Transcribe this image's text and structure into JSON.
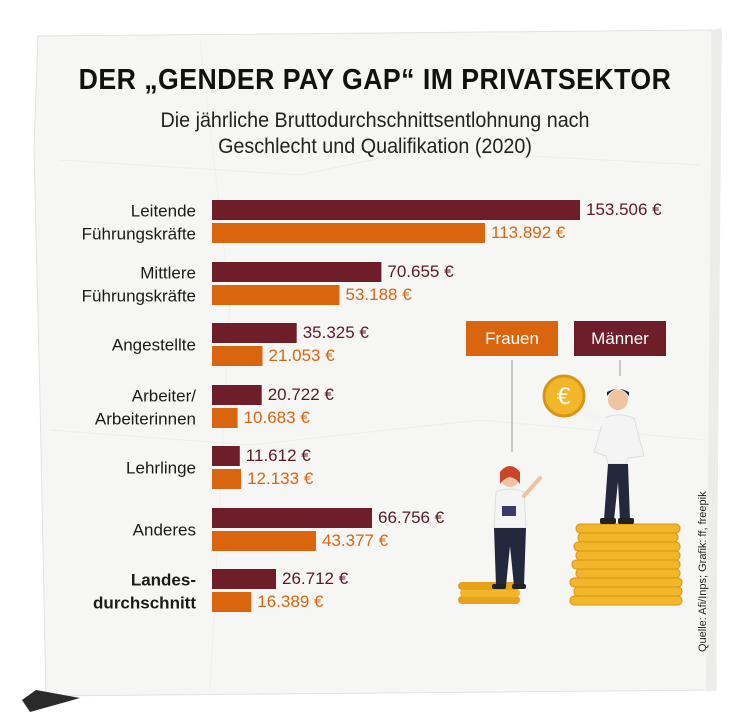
{
  "title": "DER „GENDER PAY GAP“ IM PRIVATSEKTOR",
  "subtitle_lines": [
    "Die jährliche Bruttodurchschnittsentlohnung nach",
    "Geschlecht und Qualifikation (2020)"
  ],
  "legend": {
    "women": "Frauen",
    "men": "Männer"
  },
  "source": "Quelle: Afi/Inps; Grafik: ff, freepik",
  "colors": {
    "men": "#6e1e28",
    "women": "#d9660f",
    "text_men": "#5b1a22",
    "text_women": "#d9660f"
  },
  "chart_data": {
    "type": "bar",
    "orientation": "horizontal",
    "title": "DER „GENDER PAY GAP“ IM PRIVATSEKTOR",
    "subtitle": "Die jährliche Bruttodurchschnittsentlohnung nach Geschlecht und Qualifikation (2020)",
    "unit": "€",
    "xlim": [
      0,
      153506
    ],
    "grid": false,
    "legend_position": "right",
    "categories": [
      [
        "Leitende",
        "Führungskräfte"
      ],
      [
        "Mittlere",
        "Führungskräfte"
      ],
      [
        "Angestellte"
      ],
      [
        "Arbeiter/",
        "Arbeiterinnen"
      ],
      [
        "Lehrlinge"
      ],
      [
        "Anderes"
      ],
      [
        "Landes-",
        "durchschnitt"
      ]
    ],
    "bold_categories": [
      6
    ],
    "series": [
      {
        "name": "Männer",
        "values": [
          153506,
          70655,
          35325,
          20722,
          11612,
          66756,
          26712
        ],
        "labels": [
          "153.506 €",
          "70.655 €",
          "35.325 €",
          "20.722 €",
          "11.612 €",
          "66.756 €",
          "26.712 €"
        ]
      },
      {
        "name": "Frauen",
        "values": [
          113892,
          53188,
          21053,
          10683,
          12133,
          43377,
          16389
        ],
        "labels": [
          "113.892 €",
          "53.188 €",
          "21.053 €",
          "10.683 €",
          "12.133 €",
          "43.377 €",
          "16.389 €"
        ]
      }
    ]
  }
}
